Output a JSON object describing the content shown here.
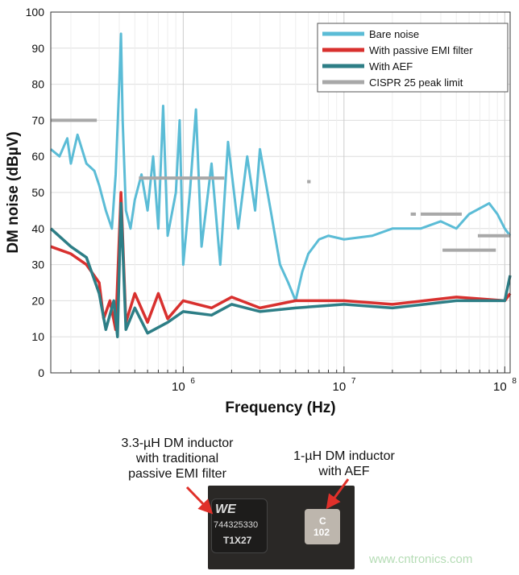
{
  "chart_data": {
    "type": "line",
    "xlabel": "Frequency (Hz)",
    "ylabel": "DM noise (dBµV)",
    "xscale": "log",
    "xlim": [
      150000,
      108000000
    ],
    "ylim": [
      0,
      100
    ],
    "yticks": [
      0,
      10,
      20,
      30,
      40,
      50,
      60,
      70,
      80,
      90,
      100
    ],
    "xticks": [
      {
        "value": 1000000,
        "base": "10",
        "exp": "6"
      },
      {
        "value": 10000000,
        "base": "10",
        "exp": "7"
      },
      {
        "value": 100000000,
        "base": "10",
        "exp": "8"
      }
    ],
    "grid": true,
    "legend_position": "top-right",
    "series": [
      {
        "name": "Bare noise",
        "color": "#5bbcd6",
        "points": [
          [
            150000,
            62
          ],
          [
            170000,
            60
          ],
          [
            190000,
            65
          ],
          [
            200000,
            58
          ],
          [
            220000,
            66
          ],
          [
            250000,
            58
          ],
          [
            280000,
            56
          ],
          [
            300000,
            52
          ],
          [
            330000,
            45
          ],
          [
            360000,
            40
          ],
          [
            380000,
            55
          ],
          [
            400000,
            80
          ],
          [
            410000,
            94
          ],
          [
            420000,
            70
          ],
          [
            440000,
            45
          ],
          [
            470000,
            40
          ],
          [
            500000,
            48
          ],
          [
            550000,
            55
          ],
          [
            600000,
            45
          ],
          [
            650000,
            60
          ],
          [
            700000,
            40
          ],
          [
            750000,
            74
          ],
          [
            800000,
            38
          ],
          [
            900000,
            50
          ],
          [
            950000,
            70
          ],
          [
            1000000,
            30
          ],
          [
            1100000,
            50
          ],
          [
            1200000,
            73
          ],
          [
            1300000,
            35
          ],
          [
            1500000,
            58
          ],
          [
            1700000,
            30
          ],
          [
            1900000,
            64
          ],
          [
            2200000,
            40
          ],
          [
            2500000,
            60
          ],
          [
            2800000,
            45
          ],
          [
            3000000,
            62
          ],
          [
            3500000,
            45
          ],
          [
            4000000,
            30
          ],
          [
            4500000,
            25
          ],
          [
            5000000,
            20
          ],
          [
            5500000,
            28
          ],
          [
            6000000,
            33
          ],
          [
            7000000,
            37
          ],
          [
            8000000,
            38
          ],
          [
            10000000,
            37
          ],
          [
            15000000,
            38
          ],
          [
            20000000,
            40
          ],
          [
            30000000,
            40
          ],
          [
            40000000,
            42
          ],
          [
            50000000,
            40
          ],
          [
            60000000,
            44
          ],
          [
            80000000,
            47
          ],
          [
            90000000,
            44
          ],
          [
            100000000,
            40
          ],
          [
            108000000,
            38
          ]
        ]
      },
      {
        "name": "With passive EMI filter",
        "color": "#d8302e",
        "points": [
          [
            150000,
            35
          ],
          [
            200000,
            33
          ],
          [
            250000,
            30
          ],
          [
            300000,
            25
          ],
          [
            320000,
            15
          ],
          [
            350000,
            20
          ],
          [
            380000,
            12
          ],
          [
            410000,
            50
          ],
          [
            440000,
            14
          ],
          [
            500000,
            22
          ],
          [
            600000,
            14
          ],
          [
            700000,
            22
          ],
          [
            800000,
            15
          ],
          [
            1000000,
            20
          ],
          [
            1500000,
            18
          ],
          [
            2000000,
            21
          ],
          [
            3000000,
            18
          ],
          [
            5000000,
            20
          ],
          [
            10000000,
            20
          ],
          [
            20000000,
            19
          ],
          [
            50000000,
            21
          ],
          [
            100000000,
            20
          ],
          [
            108000000,
            22
          ]
        ]
      },
      {
        "name": "With AEF",
        "color": "#2d7e86",
        "points": [
          [
            150000,
            40
          ],
          [
            200000,
            35
          ],
          [
            250000,
            32
          ],
          [
            300000,
            22
          ],
          [
            330000,
            12
          ],
          [
            370000,
            20
          ],
          [
            390000,
            10
          ],
          [
            410000,
            47
          ],
          [
            440000,
            12
          ],
          [
            500000,
            18
          ],
          [
            600000,
            11
          ],
          [
            800000,
            14
          ],
          [
            1000000,
            17
          ],
          [
            1500000,
            16
          ],
          [
            2000000,
            19
          ],
          [
            3000000,
            17
          ],
          [
            5000000,
            18
          ],
          [
            10000000,
            19
          ],
          [
            20000000,
            18
          ],
          [
            50000000,
            20
          ],
          [
            100000000,
            20
          ],
          [
            108000000,
            27
          ]
        ]
      },
      {
        "name": "CISPR 25 peak limit",
        "color": "#a8a8a8",
        "segments": [
          [
            150000,
            290000,
            70
          ],
          [
            530000,
            1800000,
            54
          ],
          [
            5900000,
            6200000,
            53
          ],
          [
            26000000,
            28000000,
            44
          ],
          [
            30000000,
            54000000,
            44
          ],
          [
            41000000,
            88000000,
            34
          ],
          [
            68000000,
            108000000,
            38
          ]
        ]
      }
    ]
  },
  "annotations": {
    "left_label": [
      "3.3-µH DM inductor",
      "with traditional",
      "passive EMI filter"
    ],
    "right_label": [
      "1-µH DM inductor",
      "with AEF"
    ],
    "inductor1_marking": [
      "744325330",
      "T1X27"
    ],
    "inductor2_marking": [
      "C",
      "102"
    ],
    "watermark": "www.cntronics.com"
  }
}
